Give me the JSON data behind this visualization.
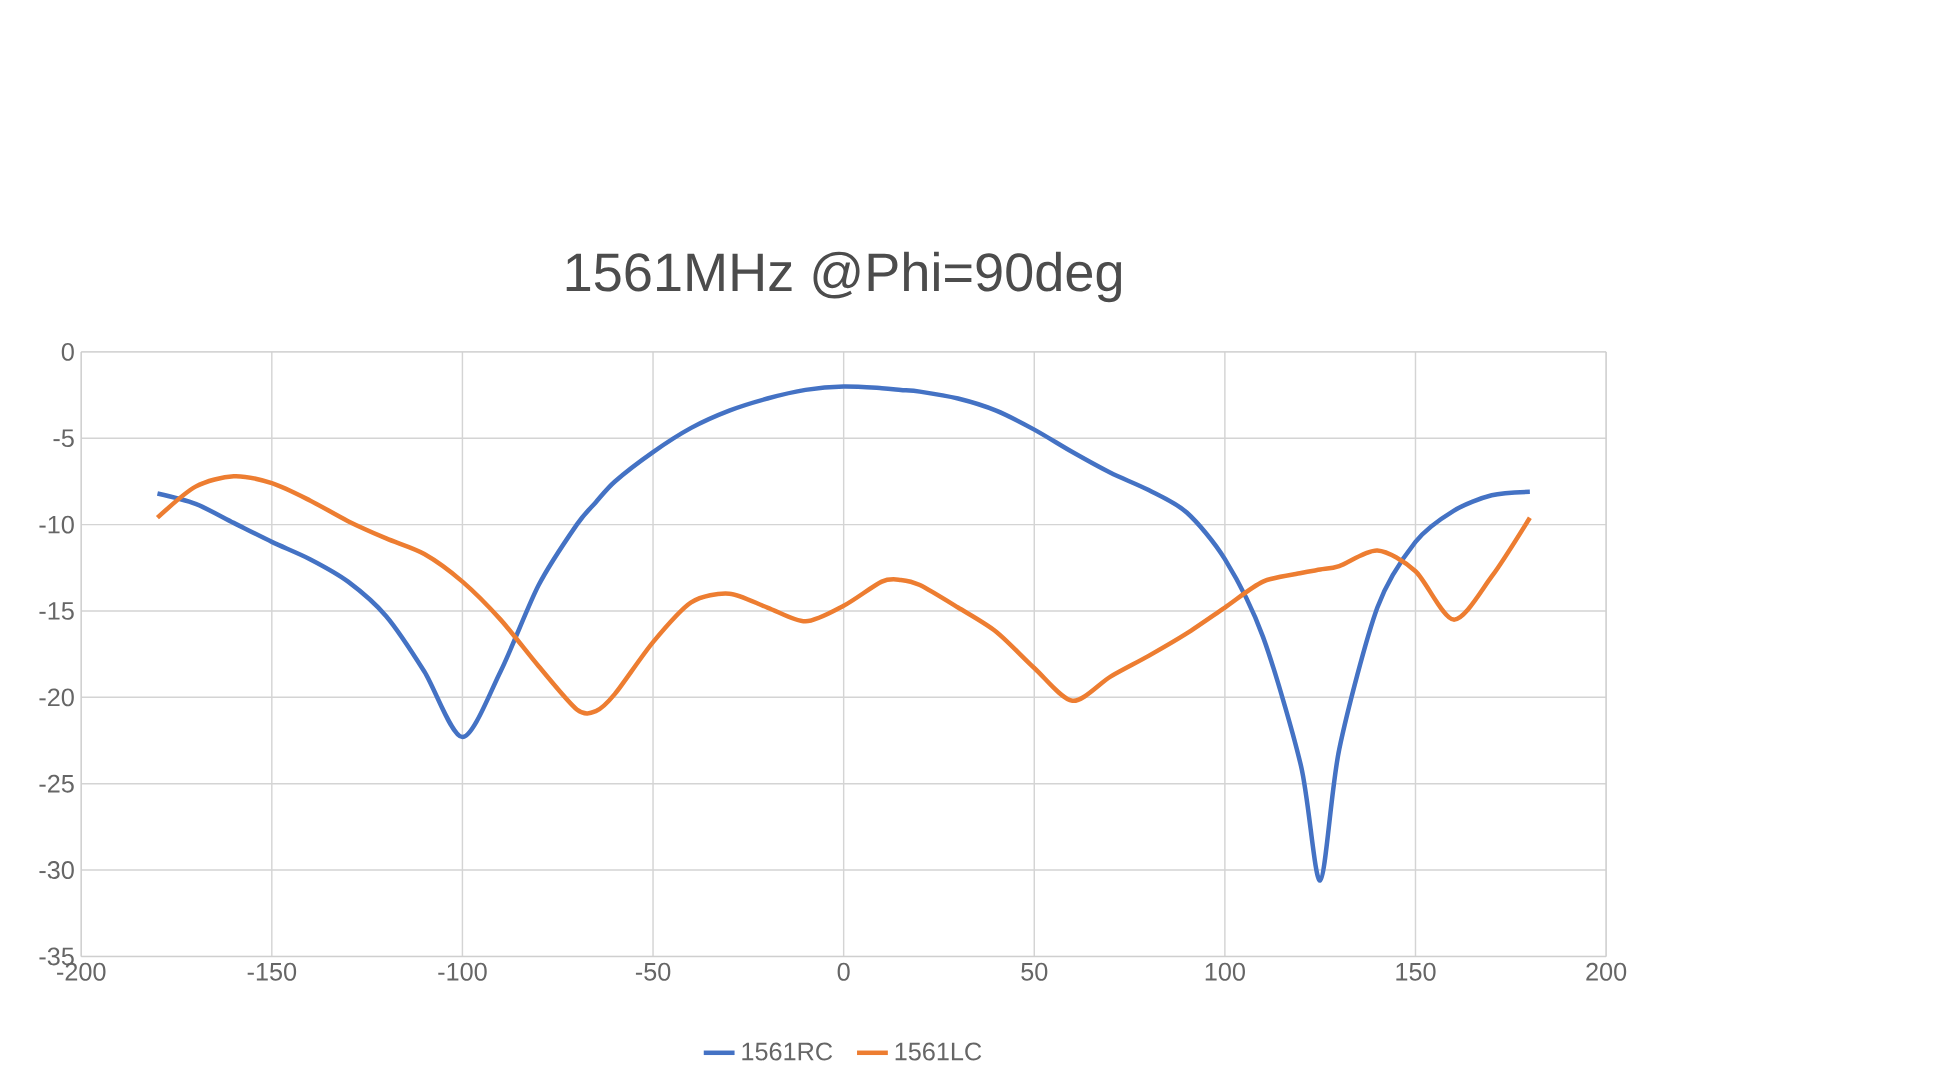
{
  "chart_data": {
    "type": "line",
    "title": "1561MHz @Phi=90deg",
    "x": [
      -180,
      -170,
      -160,
      -150,
      -140,
      -130,
      -120,
      -110,
      -100,
      -90,
      -80,
      -70,
      -65,
      -60,
      -50,
      -40,
      -30,
      -20,
      -10,
      0,
      10,
      15,
      20,
      30,
      40,
      50,
      60,
      70,
      80,
      90,
      100,
      110,
      120,
      125,
      130,
      140,
      150,
      160,
      170,
      180
    ],
    "series": [
      {
        "name": "1561RC",
        "color": "#4472c4",
        "values": [
          -8.2,
          -8.8,
          -9.9,
          -11,
          -12,
          -13.3,
          -15.3,
          -18.5,
          -22.3,
          -18.5,
          -13.5,
          -10,
          -8.7,
          -7.5,
          -5.8,
          -4.4,
          -3.4,
          -2.7,
          -2.2,
          -2.0,
          -2.1,
          -2.2,
          -2.3,
          -2.7,
          -3.4,
          -4.5,
          -5.8,
          -7,
          -8,
          -9.3,
          -12,
          -16.5,
          -24,
          -30.6,
          -23,
          -14.8,
          -11,
          -9.2,
          -8.3,
          -8.1
        ]
      },
      {
        "name": "1561LC",
        "color": "#ed7d31",
        "values": [
          -9.6,
          -7.8,
          -7.2,
          -7.6,
          -8.6,
          -9.8,
          -10.8,
          -11.7,
          -13.3,
          -15.5,
          -18.2,
          -20.7,
          -20.8,
          -19.8,
          -16.8,
          -14.5,
          -14,
          -14.8,
          -15.6,
          -14.7,
          -13.3,
          -13.2,
          -13.5,
          -14.8,
          -16.2,
          -18.3,
          -20.2,
          -18.8,
          -17.6,
          -16.3,
          -14.8,
          -13.3,
          -12.8,
          -12.6,
          -12.4,
          -11.5,
          -12.7,
          -15.5,
          -13,
          -9.6
        ]
      }
    ],
    "xlim": [
      -200,
      200
    ],
    "ylim": [
      -35,
      0
    ],
    "xticks": [
      -200,
      -150,
      -100,
      -50,
      0,
      50,
      100,
      150,
      200
    ],
    "yticks": [
      -35,
      -30,
      -25,
      -20,
      -15,
      -10,
      -5,
      0
    ],
    "grid": true,
    "legend": "bottom",
    "marker": "none",
    "line_style": "solid"
  }
}
